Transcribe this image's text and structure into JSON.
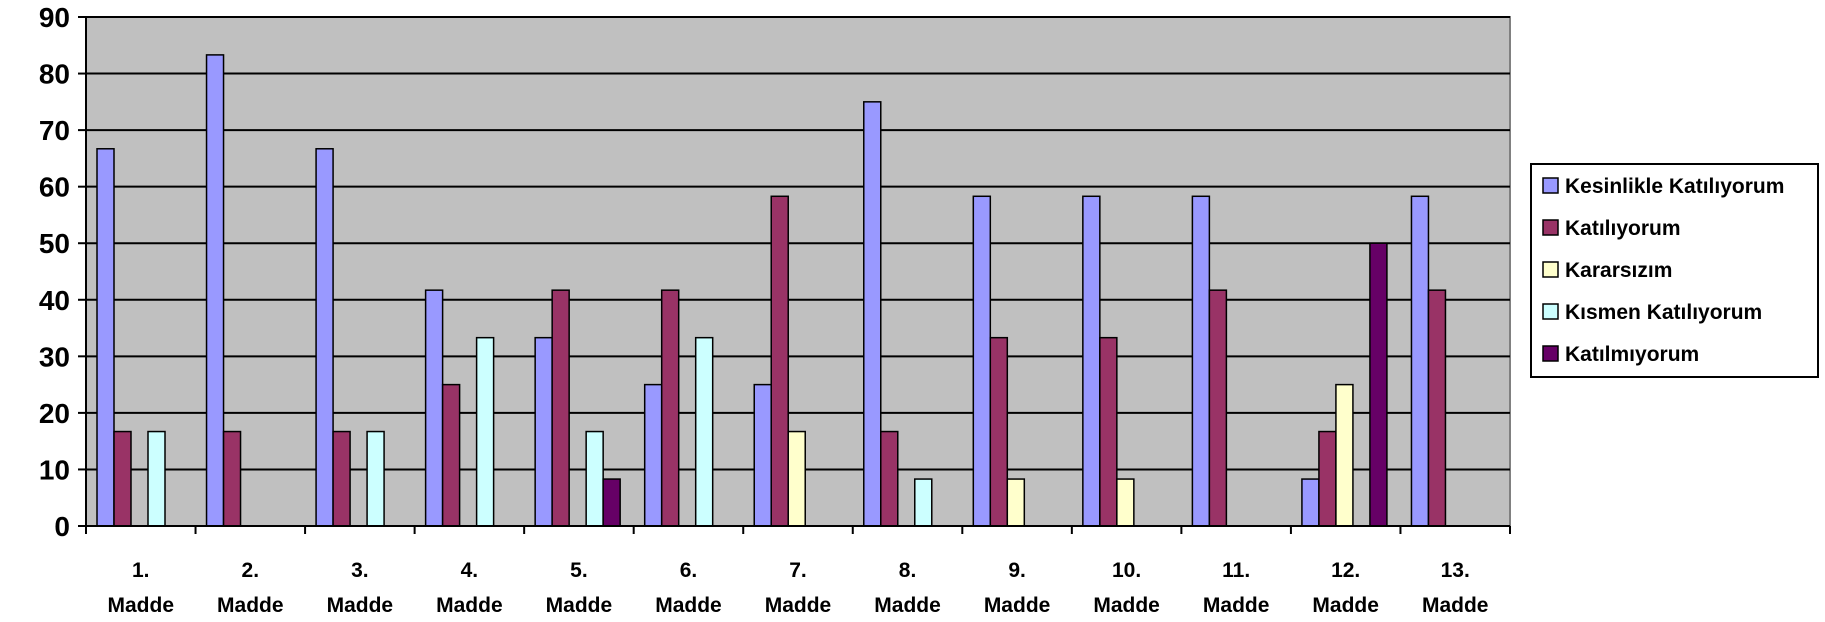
{
  "chart_data": {
    "type": "bar",
    "title": "",
    "xlabel": "",
    "ylabel": "",
    "ylim": [
      0,
      90
    ],
    "yticks": [
      0,
      10,
      20,
      30,
      40,
      50,
      60,
      70,
      80,
      90
    ],
    "grid": true,
    "legend_position": "right",
    "plot_background": "#C0C0C0",
    "categories": [
      [
        "1.",
        "Madde"
      ],
      [
        "2.",
        "Madde"
      ],
      [
        "3.",
        "Madde"
      ],
      [
        "4.",
        "Madde"
      ],
      [
        "5.",
        "Madde"
      ],
      [
        "6.",
        "Madde"
      ],
      [
        "7.",
        "Madde"
      ],
      [
        "8.",
        "Madde"
      ],
      [
        "9.",
        "Madde"
      ],
      [
        "10.",
        "Madde"
      ],
      [
        "11.",
        "Madde"
      ],
      [
        "12.",
        "Madde"
      ],
      [
        "13.",
        "Madde"
      ]
    ],
    "series": [
      {
        "name": "Kesinlikle Katılıyorum",
        "color": "#9999FF",
        "values": [
          66.7,
          83.3,
          66.7,
          41.7,
          33.3,
          25,
          25,
          75,
          58.3,
          58.3,
          58.3,
          8.3,
          58.3
        ]
      },
      {
        "name": "Katılıyorum",
        "color": "#993366",
        "values": [
          16.7,
          16.7,
          16.7,
          25,
          41.7,
          41.7,
          58.3,
          16.7,
          33.3,
          33.3,
          41.7,
          16.7,
          41.7
        ]
      },
      {
        "name": "Kararsızım",
        "color": "#FFFFCC",
        "values": [
          0,
          0,
          0,
          0,
          0,
          0,
          16.7,
          0,
          8.3,
          8.3,
          0,
          25,
          0
        ]
      },
      {
        "name": "Kısmen Katılıyorum",
        "color": "#CCFFFF",
        "values": [
          16.7,
          0,
          16.7,
          33.3,
          16.7,
          33.3,
          0,
          8.3,
          0,
          0,
          0,
          0,
          0
        ]
      },
      {
        "name": "Katılmıyorum",
        "color": "#660066",
        "values": [
          0,
          0,
          0,
          0,
          8.3,
          0,
          0,
          0,
          0,
          0,
          0,
          50,
          0
        ]
      }
    ]
  }
}
